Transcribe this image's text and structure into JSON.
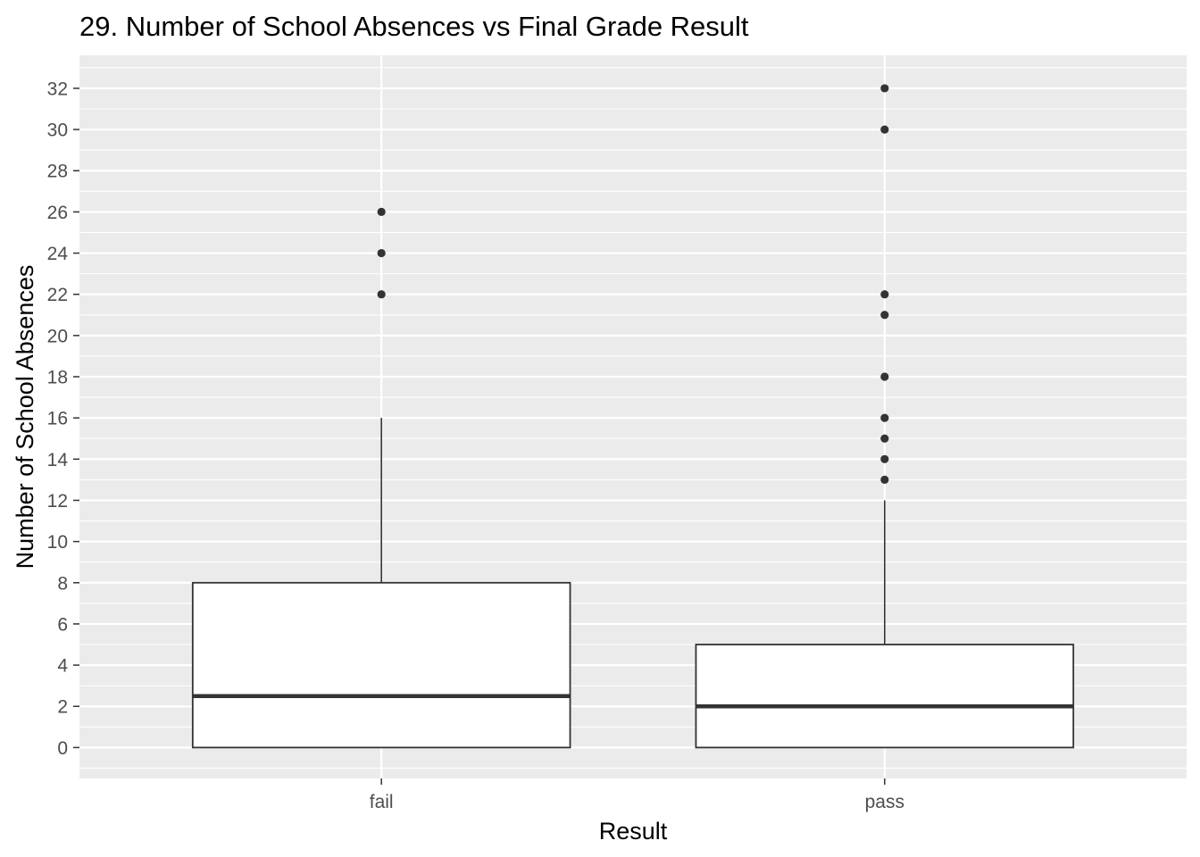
{
  "chart_data": {
    "type": "boxplot",
    "title": "29. Number of School Absences vs Final Grade Result",
    "xlabel": "Result",
    "ylabel": "Number of School Absences",
    "categories": [
      "fail",
      "pass"
    ],
    "ylim": [
      -1.5,
      33.6
    ],
    "yticks": [
      0,
      2,
      4,
      6,
      8,
      10,
      12,
      14,
      16,
      18,
      20,
      22,
      24,
      26,
      28,
      30,
      32
    ],
    "boxes": [
      {
        "category": "fail",
        "min": 0,
        "q1": 0,
        "median": 2.5,
        "q3": 8,
        "whisker_high": 16,
        "outliers": [
          22,
          24,
          26
        ]
      },
      {
        "category": "pass",
        "min": 0,
        "q1": 0,
        "median": 2,
        "q3": 5,
        "whisker_high": 12,
        "outliers": [
          13,
          14,
          15,
          16,
          18,
          21,
          22,
          30,
          32
        ]
      }
    ],
    "panel_background": "#ebebeb",
    "grid_color": "#ffffff",
    "box_fill": "#ffffff",
    "box_stroke": "#333333",
    "grid": true,
    "legend": "none"
  }
}
